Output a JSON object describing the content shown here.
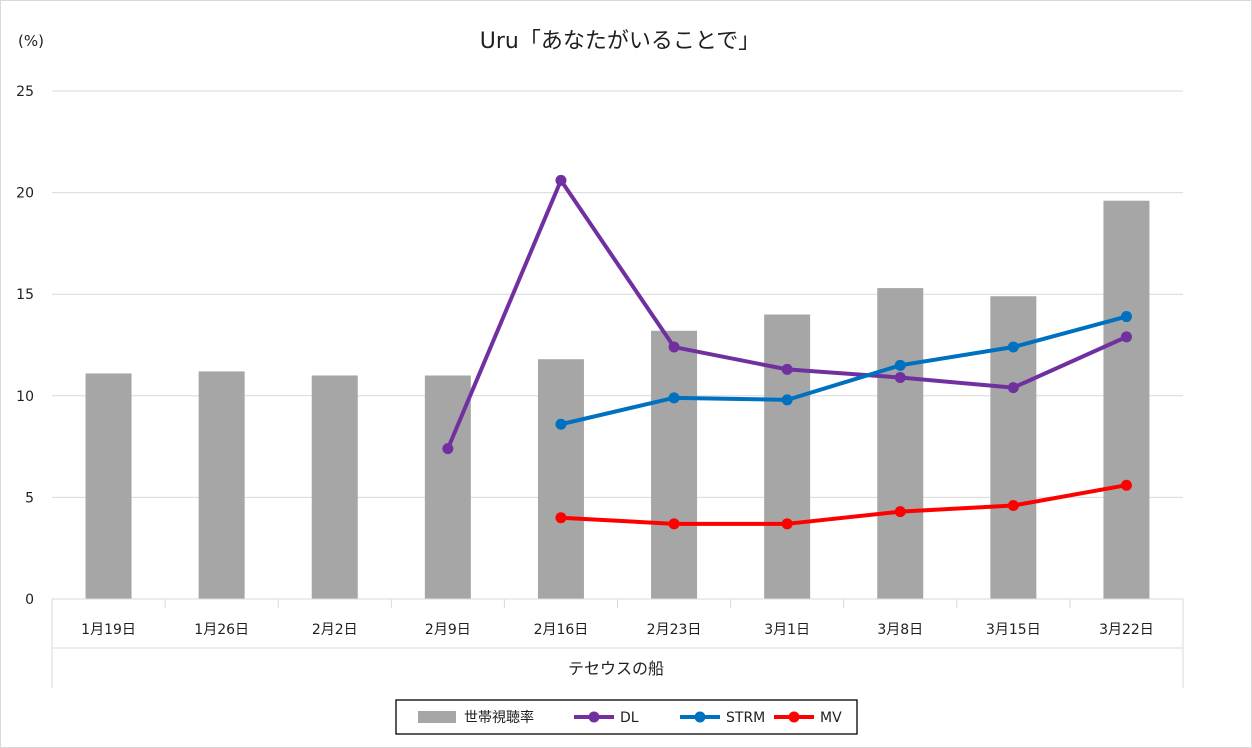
{
  "chart_data": {
    "type": "bar+line",
    "title": "Uru「あなたがいることで」",
    "unit_label": "(%)",
    "group_label": "テセウスの船",
    "categories": [
      "1月19日",
      "1月26日",
      "2月2日",
      "2月9日",
      "2月16日",
      "2月23日",
      "3月1日",
      "3月8日",
      "3月15日",
      "3月22日"
    ],
    "ylim": [
      0,
      25
    ],
    "yticks": [
      0,
      5,
      10,
      15,
      20,
      25
    ],
    "grid": true,
    "legend_position": "bottom",
    "bar_series": {
      "name": "世帯視聴率",
      "color": "#a6a6a6",
      "values": [
        11.1,
        11.2,
        11.0,
        11.0,
        11.8,
        13.2,
        14.0,
        15.3,
        14.9,
        19.6
      ]
    },
    "line_series": [
      {
        "name": "DL",
        "color": "#7030a0",
        "values": [
          null,
          null,
          null,
          7.4,
          20.6,
          12.4,
          11.3,
          10.9,
          10.4,
          12.9
        ]
      },
      {
        "name": "STRM",
        "color": "#0070c0",
        "values": [
          null,
          null,
          null,
          null,
          8.6,
          9.9,
          9.8,
          11.5,
          12.4,
          13.9
        ]
      },
      {
        "name": "MV",
        "color": "#ff0000",
        "values": [
          null,
          null,
          null,
          null,
          4.0,
          3.7,
          3.7,
          4.3,
          4.6,
          5.6
        ]
      }
    ]
  }
}
